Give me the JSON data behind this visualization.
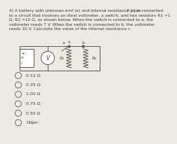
{
  "title_line1": "4) A battery with unknown emf (e) and internal resistance (r) is connected",
  "title_pts": "7 puan",
  "title_line2": "to a circuit that involves an ideal voltmeter, a switch, and two resistors R1 =1",
  "title_line3": "Ω, R2 =10 Ω, as shown below. When the switch is connected to a, the",
  "title_line4": "voltmeter reads 7 V. When the switch is connected to b, the voltmeter",
  "title_line5": "reads 10 V. Calculate the value of the internal resistance r.",
  "options": [
    "0.12 Ω",
    "0.25 Ω",
    "1.00 Ω",
    "0.75 Ω",
    "0.50 Ω",
    "Diğer:"
  ],
  "bg_color": "#edeae4",
  "text_color": "#3a3a3a",
  "font_size": 4.2,
  "opt_font_size": 4.5
}
